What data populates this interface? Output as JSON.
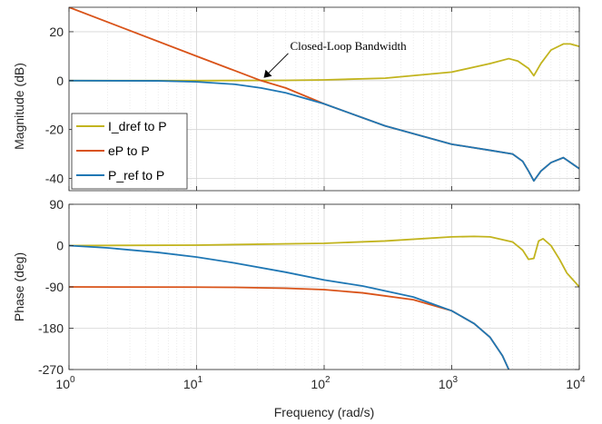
{
  "chart_data": [
    {
      "type": "line",
      "panel": "magnitude",
      "xscale": "log",
      "xlim": [
        1,
        10000
      ],
      "ylim": [
        -45,
        30
      ],
      "yticks": [
        20,
        0,
        -20,
        -40
      ],
      "ylabel": "Magnitude (dB)",
      "grid": true,
      "legend": "bottom-left",
      "annotation": "Closed-Loop Bandwidth",
      "series": [
        {
          "name": "I_dref to P",
          "color": "#c2b41e",
          "x": [
            1,
            10,
            50,
            100,
            300,
            1000,
            2000,
            2800,
            3300,
            4000,
            4400,
            5000,
            6000,
            7500,
            8500,
            10000
          ],
          "y": [
            0,
            0,
            0.1,
            0.3,
            1,
            3.5,
            7,
            9,
            8,
            5,
            2,
            7,
            12.5,
            15,
            15,
            14
          ]
        },
        {
          "name": "eP to P",
          "color": "#d95319",
          "x": [
            1,
            10,
            32,
            50,
            100,
            300,
            1000,
            2000,
            3000,
            3600,
            4000,
            4400,
            5000,
            6000,
            7500,
            10000
          ],
          "y": [
            30,
            10,
            0,
            -3,
            -9.5,
            -18.5,
            -26,
            -28.5,
            -30,
            -33,
            -37,
            -41,
            -37,
            -33.5,
            -31.5,
            -36
          ]
        },
        {
          "name": "P_ref to P",
          "color": "#1f77b4",
          "x": [
            1,
            5,
            10,
            20,
            32,
            50,
            100,
            300,
            1000,
            2000,
            3000,
            3600,
            4000,
            4400,
            5000,
            6000,
            7500,
            10000
          ],
          "y": [
            0,
            -0.1,
            -0.5,
            -1.5,
            -3,
            -5,
            -9.5,
            -18.5,
            -26,
            -28.5,
            -30,
            -33,
            -37,
            -41,
            -37,
            -33.5,
            -31.5,
            -36
          ]
        }
      ]
    },
    {
      "type": "line",
      "panel": "phase",
      "xscale": "log",
      "xlim": [
        1,
        10000
      ],
      "ylim": [
        -270,
        90
      ],
      "yticks": [
        90,
        0,
        -90,
        -180,
        -270
      ],
      "xticks": [
        "10^0",
        "10^1",
        "10^2",
        "10^3",
        "10^4"
      ],
      "ylabel": "Phase (deg)",
      "xlabel": "Frequency  (rad/s)",
      "grid": true,
      "series": [
        {
          "name": "I_dref to P",
          "color": "#c2b41e",
          "x": [
            1,
            10,
            100,
            300,
            1000,
            1500,
            2000,
            3000,
            3600,
            4000,
            4400,
            4800,
            5200,
            6000,
            7000,
            8000,
            10000
          ],
          "y": [
            0,
            1,
            5,
            10,
            19,
            20,
            19,
            8,
            -10,
            -30,
            -28,
            10,
            15,
            0,
            -30,
            -60,
            -90
          ]
        },
        {
          "name": "eP to P",
          "color": "#d95319",
          "x": [
            1,
            10,
            20,
            50,
            100,
            200,
            500,
            1000,
            1500,
            2000,
            2500,
            2800
          ],
          "y": [
            -90,
            -90.5,
            -91,
            -93,
            -96,
            -103,
            -118,
            -142,
            -170,
            -200,
            -240,
            -270
          ]
        },
        {
          "name": "P_ref to P",
          "color": "#1f77b4",
          "x": [
            1,
            2,
            5,
            10,
            20,
            50,
            100,
            200,
            500,
            1000,
            1500,
            2000,
            2500,
            2800
          ],
          "y": [
            0,
            -5,
            -15,
            -25,
            -38,
            -58,
            -75,
            -88,
            -112,
            -142,
            -170,
            -200,
            -240,
            -270
          ]
        }
      ]
    }
  ]
}
